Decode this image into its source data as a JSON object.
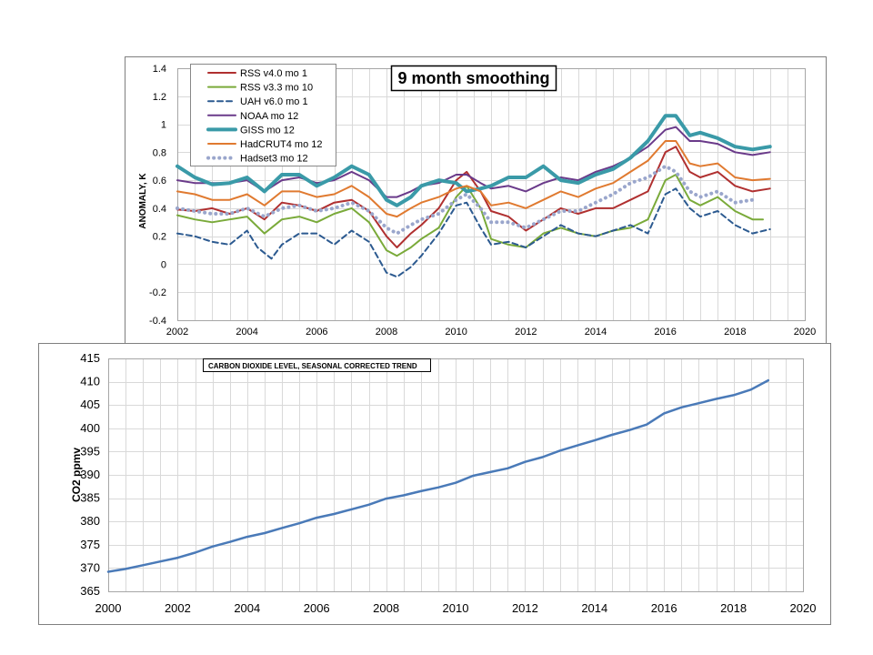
{
  "chart_data": [
    {
      "type": "line",
      "title": "9 month smoothing",
      "xlabel": "",
      "ylabel": "ANOMALY, K",
      "xlim": [
        2002,
        2020
      ],
      "ylim": [
        -0.4,
        1.4
      ],
      "x_ticks": [
        "2002",
        "2004",
        "2006",
        "2008",
        "2010",
        "2012",
        "2014",
        "2016",
        "2018",
        "2020"
      ],
      "y_ticks": [
        "-0.4",
        "-0.2",
        "0",
        "0.2",
        "0.4",
        "0.6",
        "0.8",
        "1",
        "1.2",
        "1.4"
      ],
      "grid": true,
      "legend_position": "top-left",
      "series": [
        {
          "name": "RSS v4.0 mo 1",
          "color": "#b03030",
          "style": "solid",
          "x": [
            2002,
            2002.5,
            2003,
            2003.5,
            2004,
            2004.5,
            2005,
            2005.5,
            2006,
            2006.5,
            2007,
            2007.5,
            2008,
            2008.3,
            2008.7,
            2009,
            2009.5,
            2010,
            2010.3,
            2010.7,
            2011,
            2011.5,
            2012,
            2012.5,
            2013,
            2013.5,
            2014,
            2014.5,
            2015,
            2015.5,
            2016,
            2016.3,
            2016.7,
            2017,
            2017.5,
            2018,
            2018.5,
            2019
          ],
          "y": [
            0.39,
            0.38,
            0.4,
            0.36,
            0.4,
            0.32,
            0.44,
            0.42,
            0.38,
            0.44,
            0.46,
            0.38,
            0.2,
            0.12,
            0.22,
            0.28,
            0.4,
            0.6,
            0.66,
            0.52,
            0.38,
            0.34,
            0.24,
            0.32,
            0.4,
            0.36,
            0.4,
            0.4,
            0.46,
            0.52,
            0.8,
            0.84,
            0.66,
            0.62,
            0.66,
            0.56,
            0.52,
            0.54
          ]
        },
        {
          "name": "RSS v3.3 mo 10",
          "color": "#7aaa3a",
          "style": "solid",
          "x": [
            2002,
            2002.5,
            2003,
            2003.5,
            2004,
            2004.5,
            2005,
            2005.5,
            2006,
            2006.5,
            2007,
            2007.5,
            2008,
            2008.3,
            2008.7,
            2009,
            2009.5,
            2010,
            2010.3,
            2010.7,
            2011,
            2011.5,
            2012,
            2012.5,
            2013,
            2013.5,
            2014,
            2014.5,
            2015,
            2015.5,
            2016,
            2016.3,
            2016.7,
            2017,
            2017.5,
            2018,
            2018.5,
            2018.8
          ],
          "y": [
            0.35,
            0.32,
            0.3,
            0.32,
            0.34,
            0.22,
            0.32,
            0.34,
            0.3,
            0.36,
            0.4,
            0.3,
            0.1,
            0.06,
            0.12,
            0.18,
            0.26,
            0.48,
            0.56,
            0.4,
            0.18,
            0.14,
            0.12,
            0.22,
            0.26,
            0.22,
            0.2,
            0.24,
            0.26,
            0.32,
            0.6,
            0.64,
            0.46,
            0.42,
            0.48,
            0.38,
            0.32,
            0.32
          ]
        },
        {
          "name": "UAH v6.0 mo 1",
          "color": "#2c5a90",
          "style": "dashed",
          "x": [
            2002,
            2002.5,
            2003,
            2003.5,
            2004,
            2004.3,
            2004.7,
            2005,
            2005.5,
            2006,
            2006.5,
            2007,
            2007.5,
            2008,
            2008.3,
            2008.7,
            2009,
            2009.5,
            2010,
            2010.3,
            2010.7,
            2011,
            2011.5,
            2012,
            2012.5,
            2013,
            2013.5,
            2014,
            2014.5,
            2015,
            2015.5,
            2016,
            2016.3,
            2016.7,
            2017,
            2017.5,
            2018,
            2018.5,
            2019
          ],
          "y": [
            0.22,
            0.2,
            0.16,
            0.14,
            0.24,
            0.12,
            0.04,
            0.14,
            0.22,
            0.22,
            0.14,
            0.24,
            0.16,
            -0.06,
            -0.09,
            -0.02,
            0.06,
            0.22,
            0.42,
            0.44,
            0.26,
            0.14,
            0.16,
            0.12,
            0.2,
            0.28,
            0.22,
            0.2,
            0.24,
            0.28,
            0.22,
            0.5,
            0.54,
            0.4,
            0.34,
            0.38,
            0.28,
            0.22,
            0.25
          ]
        },
        {
          "name": "NOAA mo 12",
          "color": "#6a3a8a",
          "style": "solid",
          "x": [
            2002,
            2002.5,
            2003,
            2003.5,
            2004,
            2004.5,
            2005,
            2005.5,
            2006,
            2006.5,
            2007,
            2007.5,
            2008,
            2008.3,
            2008.7,
            2009,
            2009.5,
            2010,
            2010.3,
            2010.7,
            2011,
            2011.5,
            2012,
            2012.5,
            2013,
            2013.5,
            2014,
            2014.5,
            2015,
            2015.5,
            2016,
            2016.3,
            2016.7,
            2017,
            2017.5,
            2018,
            2018.5,
            2019
          ],
          "y": [
            0.6,
            0.58,
            0.58,
            0.58,
            0.6,
            0.52,
            0.6,
            0.62,
            0.58,
            0.6,
            0.66,
            0.6,
            0.48,
            0.48,
            0.52,
            0.56,
            0.58,
            0.64,
            0.64,
            0.58,
            0.54,
            0.56,
            0.52,
            0.58,
            0.62,
            0.6,
            0.66,
            0.7,
            0.76,
            0.84,
            0.96,
            0.98,
            0.88,
            0.88,
            0.86,
            0.8,
            0.78,
            0.8
          ]
        },
        {
          "name": "GISS mo 12",
          "color": "#3a9aa8",
          "style": "thick",
          "x": [
            2002,
            2002.5,
            2003,
            2003.5,
            2004,
            2004.5,
            2005,
            2005.5,
            2006,
            2006.5,
            2007,
            2007.5,
            2008,
            2008.3,
            2008.7,
            2009,
            2009.5,
            2010,
            2010.3,
            2010.7,
            2011,
            2011.5,
            2012,
            2012.5,
            2013,
            2013.5,
            2014,
            2014.5,
            2015,
            2015.5,
            2016,
            2016.3,
            2016.7,
            2017,
            2017.5,
            2018,
            2018.5,
            2019
          ],
          "y": [
            0.7,
            0.62,
            0.57,
            0.58,
            0.62,
            0.52,
            0.64,
            0.64,
            0.56,
            0.62,
            0.7,
            0.64,
            0.46,
            0.42,
            0.48,
            0.56,
            0.6,
            0.58,
            0.52,
            0.54,
            0.56,
            0.62,
            0.62,
            0.7,
            0.6,
            0.58,
            0.64,
            0.68,
            0.76,
            0.88,
            1.06,
            1.06,
            0.92,
            0.94,
            0.9,
            0.84,
            0.82,
            0.84
          ]
        },
        {
          "name": "HadCRUT4 mo 12",
          "color": "#e07a30",
          "style": "solid",
          "x": [
            2002,
            2002.5,
            2003,
            2003.5,
            2004,
            2004.5,
            2005,
            2005.5,
            2006,
            2006.5,
            2007,
            2007.5,
            2008,
            2008.3,
            2008.7,
            2009,
            2009.5,
            2010,
            2010.3,
            2010.7,
            2011,
            2011.5,
            2012,
            2012.5,
            2013,
            2013.5,
            2014,
            2014.5,
            2015,
            2015.5,
            2016,
            2016.3,
            2016.7,
            2017,
            2017.5,
            2018,
            2018.5,
            2019
          ],
          "y": [
            0.52,
            0.5,
            0.46,
            0.46,
            0.5,
            0.42,
            0.52,
            0.52,
            0.48,
            0.5,
            0.56,
            0.48,
            0.36,
            0.34,
            0.4,
            0.44,
            0.48,
            0.54,
            0.56,
            0.52,
            0.42,
            0.44,
            0.4,
            0.46,
            0.52,
            0.48,
            0.54,
            0.58,
            0.66,
            0.74,
            0.88,
            0.88,
            0.72,
            0.7,
            0.72,
            0.62,
            0.6,
            0.61
          ]
        },
        {
          "name": "Hadset3 mo 12",
          "color": "#9aa6cc",
          "style": "dotted",
          "x": [
            2002,
            2002.5,
            2003,
            2003.5,
            2004,
            2004.5,
            2005,
            2005.5,
            2006,
            2006.5,
            2007,
            2007.5,
            2008,
            2008.3,
            2008.7,
            2009,
            2009.5,
            2010,
            2010.3,
            2010.7,
            2011,
            2011.5,
            2012,
            2012.5,
            2013,
            2013.5,
            2014,
            2014.5,
            2015,
            2015.5,
            2016,
            2016.3,
            2016.7,
            2017,
            2017.5,
            2018,
            2018.5
          ],
          "y": [
            0.4,
            0.38,
            0.36,
            0.36,
            0.4,
            0.34,
            0.4,
            0.42,
            0.38,
            0.4,
            0.44,
            0.38,
            0.26,
            0.22,
            0.28,
            0.32,
            0.36,
            0.46,
            0.5,
            0.4,
            0.3,
            0.3,
            0.26,
            0.32,
            0.38,
            0.38,
            0.44,
            0.5,
            0.58,
            0.62,
            0.7,
            0.66,
            0.52,
            0.48,
            0.52,
            0.44,
            0.46
          ]
        }
      ]
    },
    {
      "type": "line",
      "title": "CARBON DIOXIDE LEVEL, SEASONAL CORRECTED TREND",
      "xlabel": "",
      "ylabel": "CO2 ppmv",
      "xlim": [
        2000,
        2020
      ],
      "ylim": [
        365,
        415
      ],
      "x_ticks": [
        "2000",
        "2002",
        "2004",
        "2006",
        "2008",
        "2010",
        "2012",
        "2014",
        "2016",
        "2018",
        "2020"
      ],
      "y_ticks": [
        "365",
        "370",
        "375",
        "380",
        "385",
        "390",
        "395",
        "400",
        "405",
        "410",
        "415"
      ],
      "grid": true,
      "series": [
        {
          "name": "CO2",
          "color": "#4a7ab8",
          "x": [
            2000,
            2000.5,
            2001,
            2001.5,
            2002,
            2002.5,
            2003,
            2003.5,
            2004,
            2004.5,
            2005,
            2005.5,
            2006,
            2006.5,
            2007,
            2007.5,
            2008,
            2008.5,
            2009,
            2009.5,
            2010,
            2010.5,
            2011,
            2011.5,
            2012,
            2012.5,
            2013,
            2013.5,
            2014,
            2014.5,
            2015,
            2015.5,
            2016,
            2016.5,
            2017,
            2017.5,
            2018,
            2018.5,
            2019
          ],
          "y": [
            369.2,
            369.8,
            370.6,
            371.4,
            372.2,
            373.3,
            374.6,
            375.6,
            376.7,
            377.5,
            378.6,
            379.6,
            380.8,
            381.6,
            382.6,
            383.6,
            384.9,
            385.6,
            386.5,
            387.3,
            388.3,
            389.8,
            390.6,
            391.4,
            392.8,
            393.8,
            395.2,
            396.3,
            397.4,
            398.6,
            399.6,
            400.8,
            403.2,
            404.5,
            405.4,
            406.3,
            407.1,
            408.3,
            410.3
          ]
        }
      ]
    }
  ]
}
